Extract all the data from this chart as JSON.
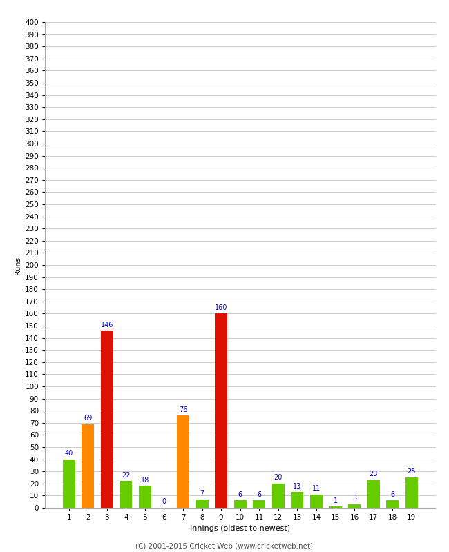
{
  "innings": [
    1,
    2,
    3,
    4,
    5,
    6,
    7,
    8,
    9,
    10,
    11,
    12,
    13,
    14,
    15,
    16,
    17,
    18,
    19
  ],
  "runs": [
    40,
    69,
    146,
    22,
    18,
    0,
    76,
    7,
    160,
    6,
    6,
    20,
    13,
    11,
    1,
    3,
    23,
    6,
    25
  ],
  "colors": [
    "#66cc00",
    "#ff8800",
    "#dd1100",
    "#66cc00",
    "#66cc00",
    "#66cc00",
    "#ff8800",
    "#66cc00",
    "#dd1100",
    "#66cc00",
    "#66cc00",
    "#66cc00",
    "#66cc00",
    "#66cc00",
    "#66cc00",
    "#66cc00",
    "#66cc00",
    "#66cc00",
    "#66cc00"
  ],
  "xlabel": "Innings (oldest to newest)",
  "ylabel": "Runs",
  "ylim": [
    0,
    400
  ],
  "yticks": [
    0,
    10,
    20,
    30,
    40,
    50,
    60,
    70,
    80,
    90,
    100,
    110,
    120,
    130,
    140,
    150,
    160,
    170,
    180,
    190,
    200,
    210,
    220,
    230,
    240,
    250,
    260,
    270,
    280,
    290,
    300,
    310,
    320,
    330,
    340,
    350,
    360,
    370,
    380,
    390,
    400
  ],
  "label_color": "#0000cc",
  "label_fontsize": 7,
  "tick_fontsize": 7.5,
  "axis_label_fontsize": 8,
  "bg_color": "#ffffff",
  "grid_color": "#cccccc",
  "footer": "(C) 2001-2015 Cricket Web (www.cricketweb.net)"
}
